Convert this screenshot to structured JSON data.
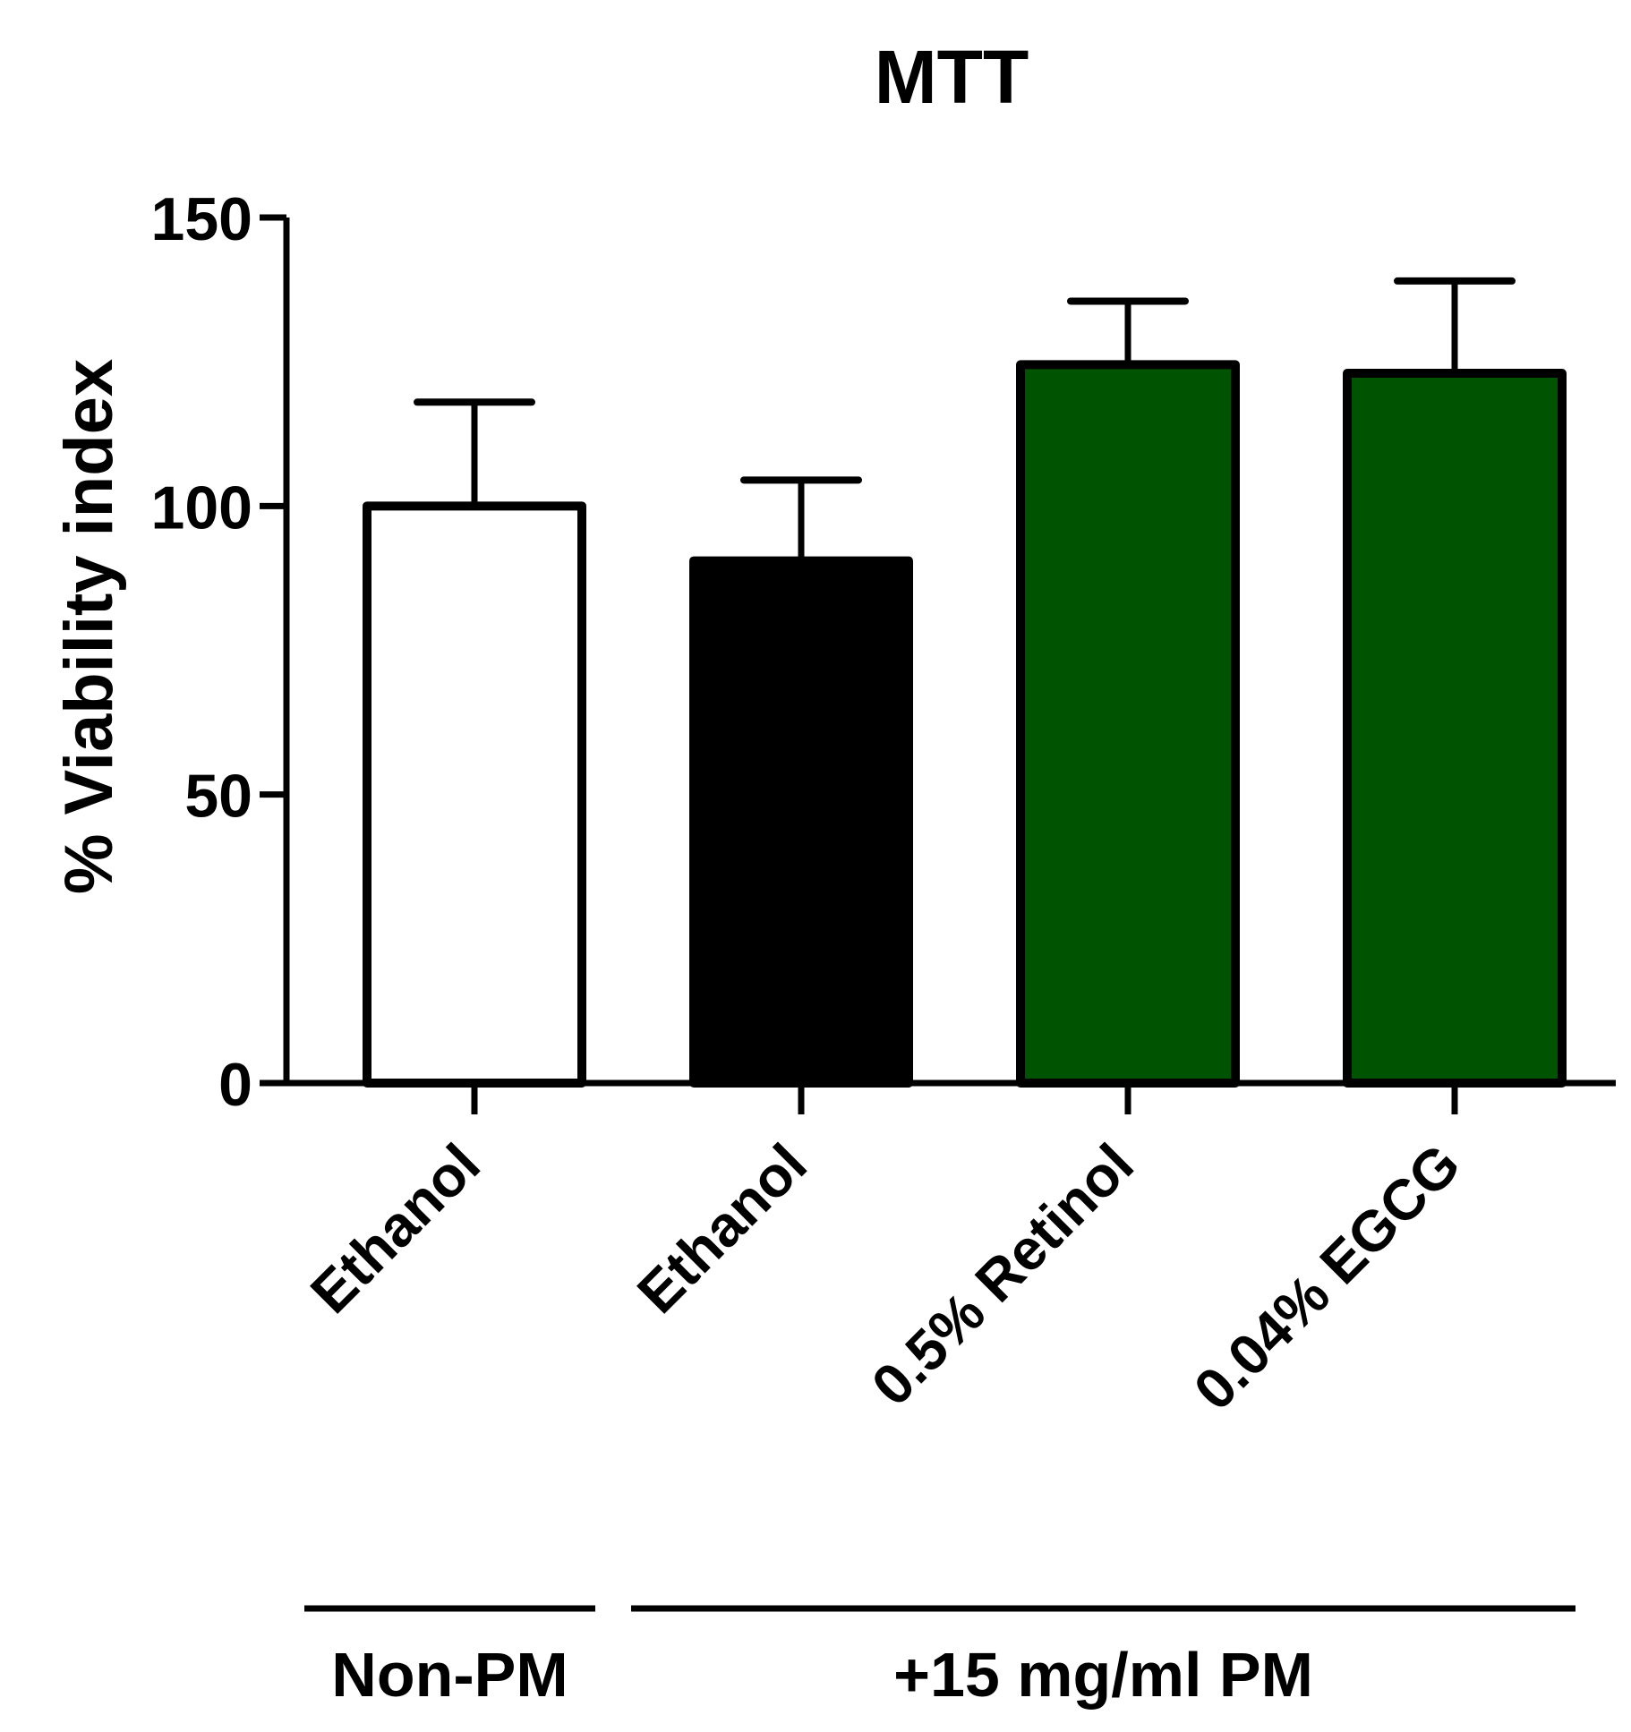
{
  "chart_data": {
    "type": "bar",
    "title": "MTT",
    "ylabel": "% Viability index",
    "xlabel": "",
    "ylim": [
      0,
      150
    ],
    "yticks": [
      0,
      50,
      100,
      150
    ],
    "categories": [
      "Ethanol",
      "Ethanol",
      "0.5% Retinol",
      "0.04% EGCG"
    ],
    "values": [
      100,
      90.5,
      124.5,
      123
    ],
    "errors": [
      18,
      14,
      11,
      16
    ],
    "colors": [
      "#ffffff",
      "#000000",
      "#005300",
      "#005300"
    ],
    "groups": [
      {
        "label": "Non-PM",
        "categories": [
          0
        ]
      },
      {
        "label": "+15 mg/ml PM",
        "categories": [
          1,
          2,
          3
        ]
      }
    ],
    "grid": false,
    "legend": "none"
  }
}
